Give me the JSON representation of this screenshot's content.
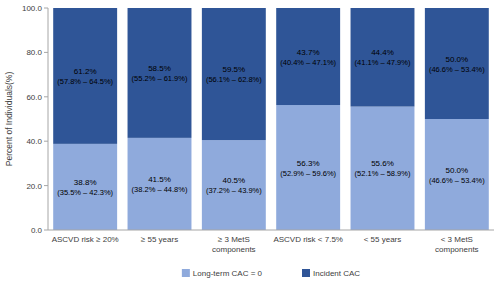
{
  "chart_data": {
    "type": "bar",
    "stacked": true,
    "data_labels": true,
    "grid": false,
    "legend": "bottom",
    "y_label": "Percent of Individuals(%)",
    "categories": [
      "ASCVD risk ≥ 20%",
      "≥ 55 years",
      "≥ 3 MetS components",
      "ASCVD risk < 7.5%",
      "< 55 years",
      "< 3 MetS components"
    ],
    "ylim": [
      0,
      100
    ],
    "yticks": [
      {
        "value": 0,
        "label": "0.0"
      },
      {
        "value": 20,
        "label": "20.0"
      },
      {
        "value": 40,
        "label": "40.0"
      },
      {
        "value": 60,
        "label": "60.0"
      },
      {
        "value": 80,
        "label": "80.0"
      },
      {
        "value": 100,
        "label": "100.0"
      }
    ],
    "series": [
      {
        "name": "Long-term CAC = 0",
        "color": "#8faadc",
        "values": [
          38.8,
          41.5,
          40.5,
          56.3,
          55.6,
          50.0
        ],
        "value_labels": [
          "38.8%",
          "41.5%",
          "40.5%",
          "56.3%",
          "55.6%",
          "50.0%"
        ],
        "ci_labels": [
          "(35.5% – 42.3%)",
          "(38.2% – 44.8%)",
          "(37.2% – 43.9%)",
          "(52.9% – 59.6%)",
          "(52.1% – 58.9%)",
          "(46.6% – 53.4%)"
        ]
      },
      {
        "name": "Incident CAC",
        "color": "#2f5597",
        "values": [
          61.2,
          58.5,
          59.5,
          43.7,
          44.4,
          50.0
        ],
        "value_labels": [
          "61.2%",
          "58.5%",
          "59.5%",
          "43.7%",
          "44.4%",
          "50.0%"
        ],
        "ci_labels": [
          "(57.8% – 64.5%)",
          "(55.2% – 61.9%)",
          "(56.1% – 62.8%)",
          "(40.4% – 47.1%)",
          "(41.1% – 47.9%)",
          "(46.6% – 53.4%)"
        ]
      }
    ]
  }
}
